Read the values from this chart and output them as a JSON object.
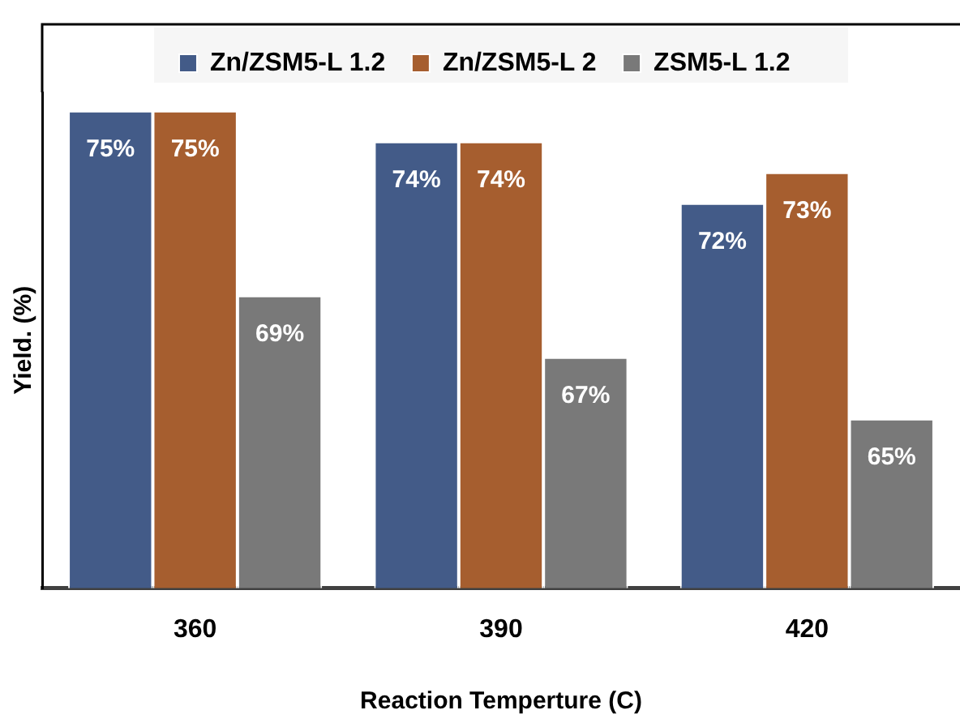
{
  "chart_data": {
    "type": "bar",
    "xlabel": "Reaction Temperture (C)",
    "ylabel": "Yield. (%)",
    "categories": [
      "360",
      "390",
      "420"
    ],
    "series": [
      {
        "name": "Zn/ZSM5-L 1.2",
        "color": "#435b88",
        "values": [
          75,
          74,
          72
        ],
        "value_labels": [
          "75%",
          "74%",
          "72%"
        ]
      },
      {
        "name": "Zn/ZSM5-L 2",
        "color": "#a65e2f",
        "values": [
          75,
          74,
          73
        ],
        "value_labels": [
          "75%",
          "74%",
          "73%"
        ]
      },
      {
        "name": "ZSM5-L 1.2",
        "color": "#797979",
        "values": [
          69,
          67,
          65
        ],
        "value_labels": [
          "69%",
          "67%",
          "65%"
        ]
      }
    ],
    "ylim": [
      59.5,
      75.6
    ],
    "tick_labels": "x",
    "legend": "top",
    "grid": false
  }
}
